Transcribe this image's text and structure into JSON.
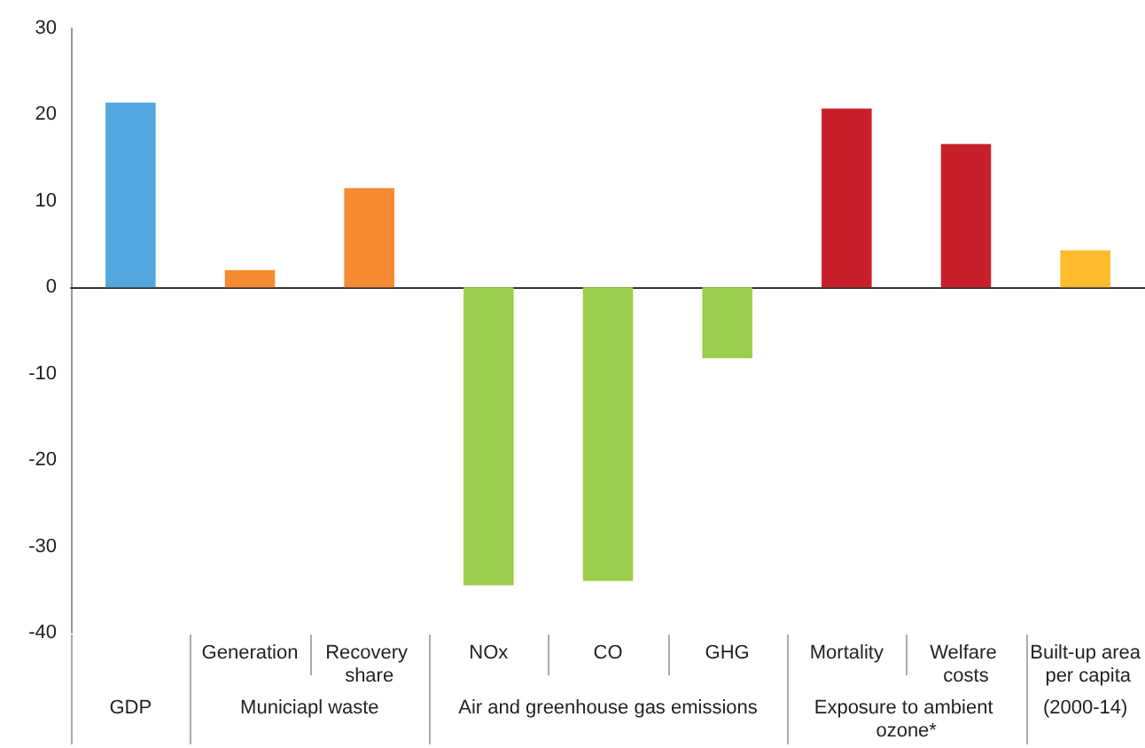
{
  "chart_data": {
    "type": "bar",
    "categories": [
      null,
      "Generation",
      "Recovery share",
      "NOx",
      "CO",
      "GHG",
      "Mortality",
      "Welfare costs",
      "Built-up area per capita"
    ],
    "values": [
      21.4,
      2,
      11.5,
      -34.5,
      -34,
      -8.2,
      20.7,
      16.6,
      4.3
    ],
    "colors": [
      "#53a7df",
      "#f58a31",
      "#f58a31",
      "#9ccd4e",
      "#9ccd4e",
      "#9ccd4e",
      "#c8202b",
      "#c8202b",
      "#fdbb2d"
    ],
    "annotations": [
      "GDP",
      "Municiapl waste",
      "Air and greenhouse gas emissions",
      "Exposure to ambient ozone*",
      "(2000-14)"
    ],
    "ylim": [
      -40,
      30
    ],
    "yticks": [
      -40,
      -30,
      -20,
      -10,
      0,
      10,
      20,
      30
    ]
  }
}
